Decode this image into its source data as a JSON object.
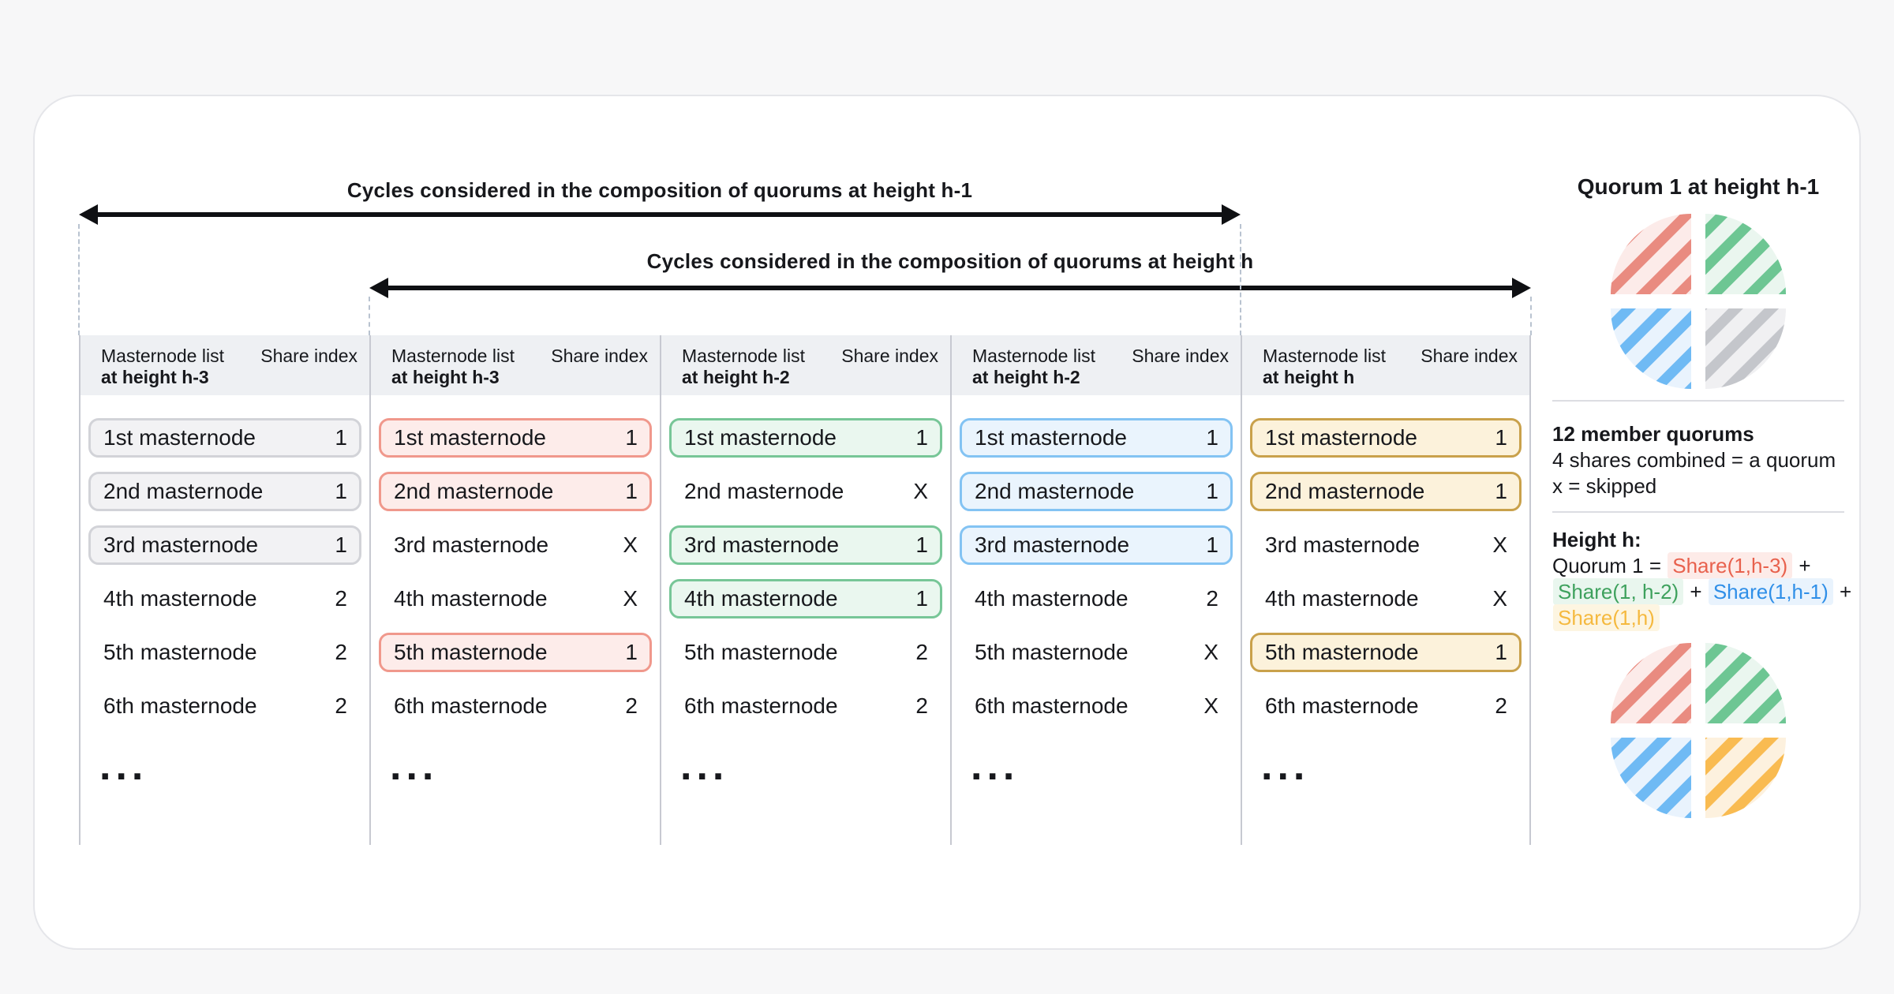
{
  "arrows": [
    {
      "label": "Cycles considered in the composition of quorums at height h-1"
    },
    {
      "label": "Cycles considered in the composition of quorums at height h"
    }
  ],
  "table": {
    "columns": [
      {
        "style": "gray",
        "header": {
          "line1": "Masternode list",
          "line2": "at height h-3",
          "share": "Share index"
        },
        "ellipsis": "...",
        "rows": [
          {
            "label": "1st masternode",
            "value": "1",
            "highlighted": true
          },
          {
            "label": "2nd masternode",
            "value": "1",
            "highlighted": true
          },
          {
            "label": "3rd masternode",
            "value": "1",
            "highlighted": true
          },
          {
            "label": "4th masternode",
            "value": "2",
            "highlighted": false
          },
          {
            "label": "5th masternode",
            "value": "2",
            "highlighted": false
          },
          {
            "label": "6th masternode",
            "value": "2",
            "highlighted": false
          }
        ]
      },
      {
        "style": "red",
        "header": {
          "line1": "Masternode list",
          "line2": "at height h-3",
          "share": "Share index"
        },
        "ellipsis": "...",
        "rows": [
          {
            "label": "1st masternode",
            "value": "1",
            "highlighted": true
          },
          {
            "label": "2nd masternode",
            "value": "1",
            "highlighted": true
          },
          {
            "label": "3rd masternode",
            "value": "X",
            "highlighted": false
          },
          {
            "label": "4th masternode",
            "value": "X",
            "highlighted": false
          },
          {
            "label": "5th masternode",
            "value": "1",
            "highlighted": true
          },
          {
            "label": "6th masternode",
            "value": "2",
            "highlighted": false
          }
        ]
      },
      {
        "style": "green",
        "header": {
          "line1": "Masternode list",
          "line2": "at height h-2",
          "share": "Share index"
        },
        "ellipsis": "...",
        "rows": [
          {
            "label": "1st masternode",
            "value": "1",
            "highlighted": true
          },
          {
            "label": "2nd masternode",
            "value": "X",
            "highlighted": false
          },
          {
            "label": "3rd masternode",
            "value": "1",
            "highlighted": true
          },
          {
            "label": "4th masternode",
            "value": "1",
            "highlighted": true
          },
          {
            "label": "5th masternode",
            "value": "2",
            "highlighted": false
          },
          {
            "label": "6th masternode",
            "value": "2",
            "highlighted": false
          }
        ]
      },
      {
        "style": "blue",
        "header": {
          "line1": "Masternode list",
          "line2": "at height h-2",
          "share": "Share index"
        },
        "ellipsis": "...",
        "rows": [
          {
            "label": "1st masternode",
            "value": "1",
            "highlighted": true
          },
          {
            "label": "2nd masternode",
            "value": "1",
            "highlighted": true
          },
          {
            "label": "3rd masternode",
            "value": "1",
            "highlighted": true
          },
          {
            "label": "4th masternode",
            "value": "2",
            "highlighted": false
          },
          {
            "label": "5th masternode",
            "value": "X",
            "highlighted": false
          },
          {
            "label": "6th masternode",
            "value": "X",
            "highlighted": false
          }
        ]
      },
      {
        "style": "yellow",
        "header": {
          "line1": "Masternode list",
          "line2": "at height h",
          "share": "Share index"
        },
        "ellipsis": "...",
        "rows": [
          {
            "label": "1st masternode",
            "value": "1",
            "highlighted": true
          },
          {
            "label": "2nd masternode",
            "value": "1",
            "highlighted": true
          },
          {
            "label": "3rd masternode",
            "value": "X",
            "highlighted": false
          },
          {
            "label": "4th masternode",
            "value": "X",
            "highlighted": false
          },
          {
            "label": "5th masternode",
            "value": "1",
            "highlighted": true
          },
          {
            "label": "6th masternode",
            "value": "2",
            "highlighted": false
          }
        ]
      }
    ]
  },
  "legend": {
    "title": "Quorum 1 at height h-1",
    "info": [
      "12 member quorums",
      "4 shares combined = a quorum",
      "x = skipped"
    ],
    "height_heading": "Height h:",
    "formula_lines": [
      [
        {
          "text": "Quorum 1 = ",
          "style": "plain"
        },
        {
          "text": "Share(1,h-3)",
          "style": "red"
        },
        {
          "text": " +",
          "style": "plain"
        }
      ],
      [
        {
          "text": "Share(1, h-2)",
          "style": "green"
        },
        {
          "text": " + ",
          "style": "plain"
        },
        {
          "text": "Share(1,h-1)",
          "style": "blue"
        },
        {
          "text": " +",
          "style": "plain"
        }
      ],
      [
        {
          "text": "Share(1,h)",
          "style": "yellow"
        }
      ]
    ],
    "pies": [
      {
        "name": "quorum-1-at-height-h-1",
        "quadrants": [
          "red",
          "green",
          "blue",
          "gray"
        ]
      },
      {
        "name": "quorum-1-at-height-h",
        "quadrants": [
          "red",
          "green",
          "blue",
          "yellow"
        ]
      }
    ]
  },
  "colors": {
    "red": {
      "text": "#e8614d",
      "highlight": "#fdebe8",
      "stripe": "#e98b80",
      "tint": "#fcebe9",
      "pill_bg": "#fdecea",
      "pill_border": "#f0988c"
    },
    "green": {
      "text": "#3ea15d",
      "highlight": "#e9f6ee",
      "stripe": "#6dc693",
      "tint": "#eaf6ef",
      "pill_bg": "#eaf7ef",
      "pill_border": "#77c697"
    },
    "blue": {
      "text": "#2f8fe8",
      "highlight": "#e9f3fd",
      "stripe": "#6fbaf4",
      "tint": "#e9f3fd",
      "pill_bg": "#eaf4fd",
      "pill_border": "#83c3f3"
    },
    "yellow": {
      "text": "#f5b93f",
      "highlight": "#fdf5e1",
      "stripe": "#f9bb51",
      "tint": "#fdf1de",
      "pill_bg": "#fcf2db",
      "pill_border": "#c9a14b"
    },
    "gray": {
      "text": "#17181c",
      "highlight": "#f0f0f2",
      "stripe": "#c4c6cb",
      "tint": "#f0f0f2",
      "pill_bg": "#f2f2f4",
      "pill_border": "#d2d3d8"
    }
  }
}
